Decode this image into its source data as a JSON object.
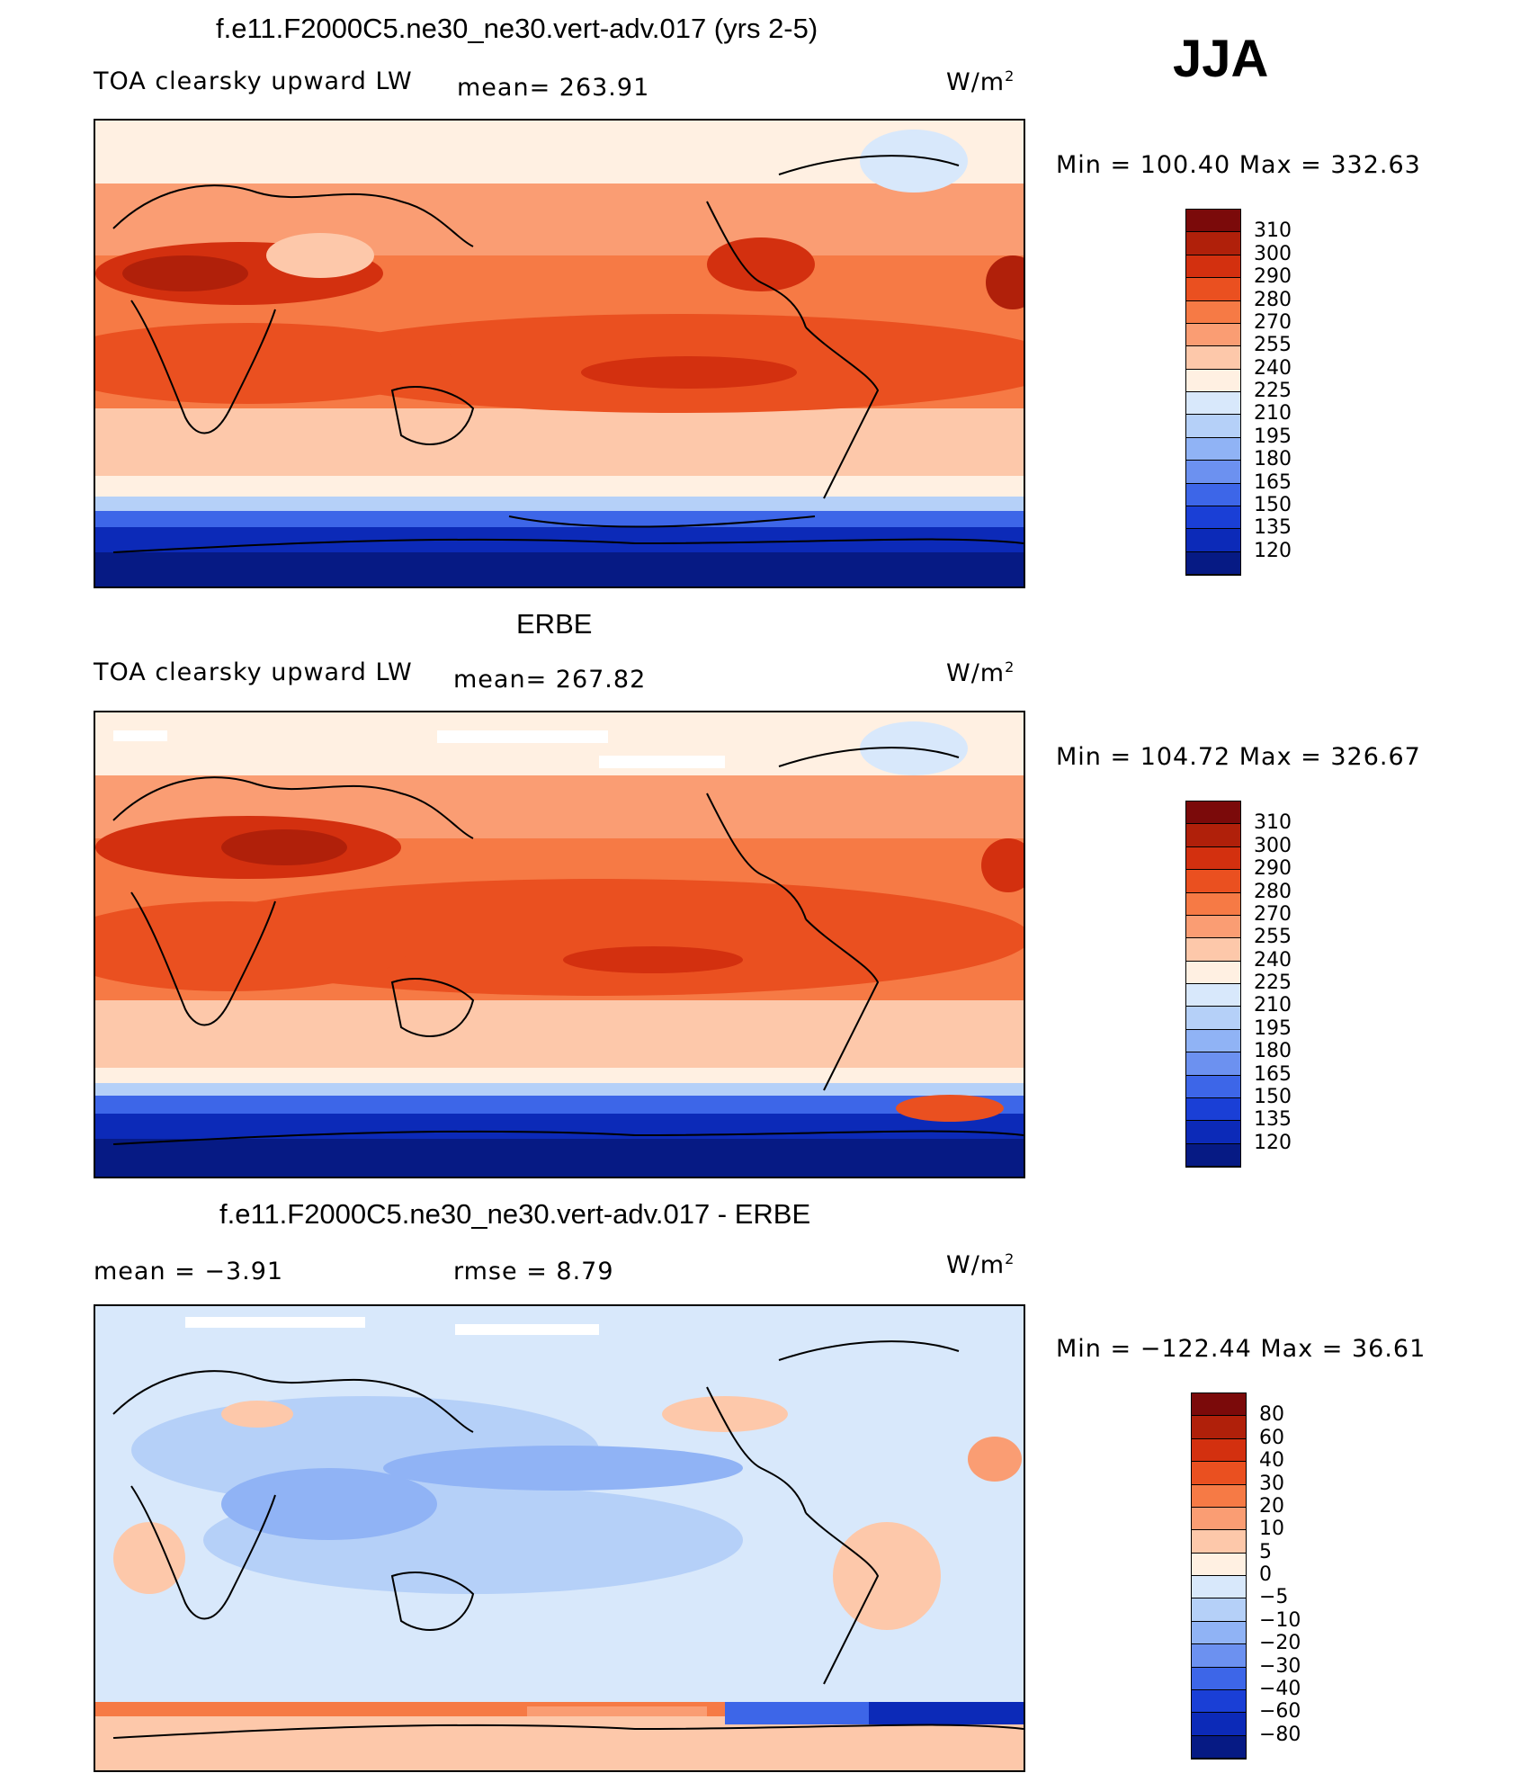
{
  "season": "JJA",
  "panels": [
    {
      "title": "f.e11.F2000C5.ne30_ne30.vert-adv.017 (yrs 2-5)",
      "left": "TOA clearsky upward LW",
      "mid": "mean=  263.91",
      "units": "W/m",
      "units_sup": "2",
      "minmax": "Min  =  100.40  Max  =  332.63",
      "palette": "abs",
      "ticks": [
        "310",
        "300",
        "290",
        "280",
        "270",
        "255",
        "240",
        "225",
        "210",
        "195",
        "180",
        "165",
        "150",
        "135",
        "120"
      ]
    },
    {
      "title": "ERBE",
      "left": "TOA clearsky upward LW",
      "mid": "mean=  267.82",
      "units": "W/m",
      "units_sup": "2",
      "minmax": "Min  =  104.72  Max  =  326.67",
      "palette": "abs",
      "ticks": [
        "310",
        "300",
        "290",
        "280",
        "270",
        "255",
        "240",
        "225",
        "210",
        "195",
        "180",
        "165",
        "150",
        "135",
        "120"
      ]
    },
    {
      "title": "f.e11.F2000C5.ne30_ne30.vert-adv.017 - ERBE",
      "left": "mean  =    −3.91",
      "mid": "rmse  =     8.79",
      "units": "W/m",
      "units_sup": "2",
      "minmax": "Min  =  −122.44  Max  =    36.61",
      "palette": "diff",
      "ticks": [
        "80",
        "60",
        "40",
        "30",
        "20",
        "10",
        "5",
        "0",
        "−5",
        "−10",
        "−20",
        "−30",
        "−40",
        "−60",
        "−80"
      ]
    }
  ],
  "colors": {
    "abs": [
      "#7b0a0a",
      "#b0200a",
      "#d3300f",
      "#ea5020",
      "#f67a45",
      "#fa9d73",
      "#fdc8aa",
      "#fff0e2",
      "#d8e8fb",
      "#b5d0f8",
      "#90b3f5",
      "#6c91f0",
      "#3d66e8",
      "#1a3fd6",
      "#0c2ab8",
      "#061a84"
    ],
    "diff": [
      "#7b0a0a",
      "#b0200a",
      "#d3300f",
      "#ea5020",
      "#f67a45",
      "#fa9d73",
      "#fdc8aa",
      "#fff0e2",
      "#d8e8fb",
      "#b5d0f8",
      "#90b3f5",
      "#6c91f0",
      "#3d66e8",
      "#1a3fd6",
      "#0c2ab8",
      "#061a84"
    ]
  }
}
